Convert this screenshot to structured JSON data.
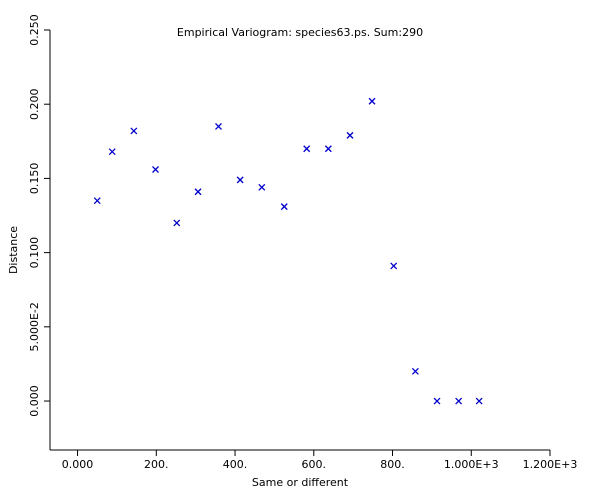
{
  "chart_data": {
    "type": "scatter",
    "title": "Empirical Variogram: species63.ps. Sum:290",
    "xlabel": "Same or different",
    "ylabel": "Distance",
    "xlim": [
      -70,
      1200
    ],
    "ylim": [
      -0.033,
      0.25
    ],
    "x_ticks": [
      0,
      200,
      400,
      600,
      800,
      1000,
      1200
    ],
    "x_tick_labels": [
      "0.000",
      "200.",
      "400.",
      "600.",
      "800.",
      "1.000E+3",
      "1.200E+3"
    ],
    "y_ticks": [
      0,
      0.05,
      0.1,
      0.15,
      0.2,
      0.25
    ],
    "y_tick_labels": [
      "0.000",
      "5.000E-2",
      "0.100",
      "0.150",
      "0.200",
      "0.250"
    ],
    "marker_color": "#0000cc",
    "series": [
      {
        "x": [
          50,
          88,
          143,
          198,
          252,
          306,
          358,
          413,
          468,
          525,
          582,
          637,
          692,
          748,
          803,
          858,
          913,
          968,
          1020
        ],
        "y": [
          0.135,
          0.168,
          0.182,
          0.156,
          0.12,
          0.141,
          0.185,
          0.149,
          0.144,
          0.131,
          0.17,
          0.17,
          0.179,
          0.202,
          0.091,
          0.02,
          0.0,
          0.0,
          0.0
        ]
      }
    ]
  }
}
